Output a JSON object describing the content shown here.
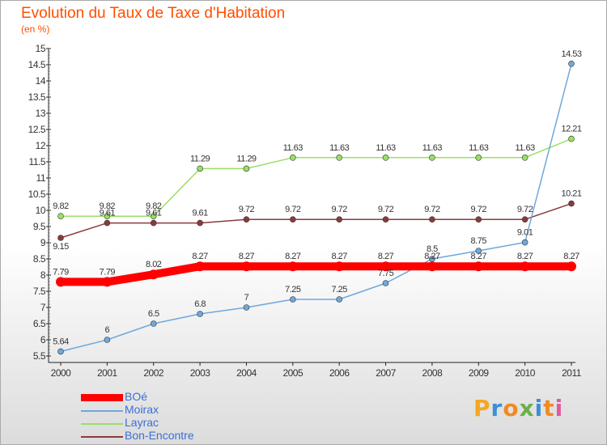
{
  "title": "Evolution du Taux de Taxe d'Habitation",
  "subtitle": "(en %)",
  "logo": {
    "text": "Proxiti",
    "colors": [
      "#f5a623",
      "#3b8fd8",
      "#f08a24",
      "#6ab04c",
      "#3b8fd8",
      "#f08a24",
      "#e05aa0"
    ]
  },
  "chart_data": {
    "type": "line",
    "title": "Evolution du Taux de Taxe d'Habitation",
    "subtitle": "(en %)",
    "xlabel": "",
    "ylabel": "",
    "x": [
      "2000",
      "2001",
      "2002",
      "2003",
      "2004",
      "2005",
      "2006",
      "2007",
      "2008",
      "2009",
      "2010",
      "2011"
    ],
    "ylim": [
      5.5,
      15
    ],
    "yticks": [
      "5.5",
      "6",
      "6.5",
      "7",
      "7.5",
      "8",
      "8.5",
      "9",
      "9.5",
      "10",
      "10.5",
      "11",
      "11.5",
      "12",
      "12.5",
      "13",
      "13.5",
      "14",
      "14.5",
      "15"
    ],
    "grid": false,
    "legend_position": "bottom-left",
    "series": [
      {
        "name": "BOé",
        "color": "#ff0000",
        "values": [
          7.79,
          7.79,
          8.02,
          8.27,
          8.27,
          8.27,
          8.27,
          8.27,
          8.27,
          8.27,
          8.27,
          8.27
        ],
        "labels": [
          "7.79",
          "7.79",
          "8.02",
          "8.27",
          "8.27",
          "8.27",
          "8.27",
          "8.27",
          "8.27",
          "8.27",
          "8.27",
          "8.27"
        ]
      },
      {
        "name": "Moirax",
        "color": "#6fa8dc",
        "values": [
          5.64,
          6,
          6.5,
          6.8,
          7,
          7.25,
          7.25,
          7.75,
          8.5,
          8.75,
          9.01,
          14.53
        ],
        "labels": [
          "5.64",
          "6",
          "6.5",
          "6.8",
          "7",
          "7.25",
          "7.25",
          "7.75",
          "8.5",
          "8.75",
          "9.01",
          "14.53"
        ]
      },
      {
        "name": "Layrac",
        "color": "#99e066",
        "values": [
          9.82,
          9.82,
          9.82,
          11.29,
          11.29,
          11.63,
          11.63,
          11.63,
          11.63,
          11.63,
          11.63,
          12.21
        ],
        "labels": [
          "9.82",
          "9.82",
          "9.82",
          "11.29",
          "11.29",
          "11.63",
          "11.63",
          "11.63",
          "11.63",
          "11.63",
          "11.63",
          "12.21"
        ]
      },
      {
        "name": "Bon-Encontre",
        "color": "#8b3a3a",
        "values": [
          9.15,
          9.61,
          9.61,
          9.61,
          9.72,
          9.72,
          9.72,
          9.72,
          9.72,
          9.72,
          9.72,
          10.21
        ],
        "labels": [
          "9.15",
          "9.61",
          "9.61",
          "9.61",
          "9.72",
          "9.72",
          "9.72",
          "9.72",
          "9.72",
          "9.72",
          "9.72",
          "10.21"
        ]
      }
    ]
  }
}
